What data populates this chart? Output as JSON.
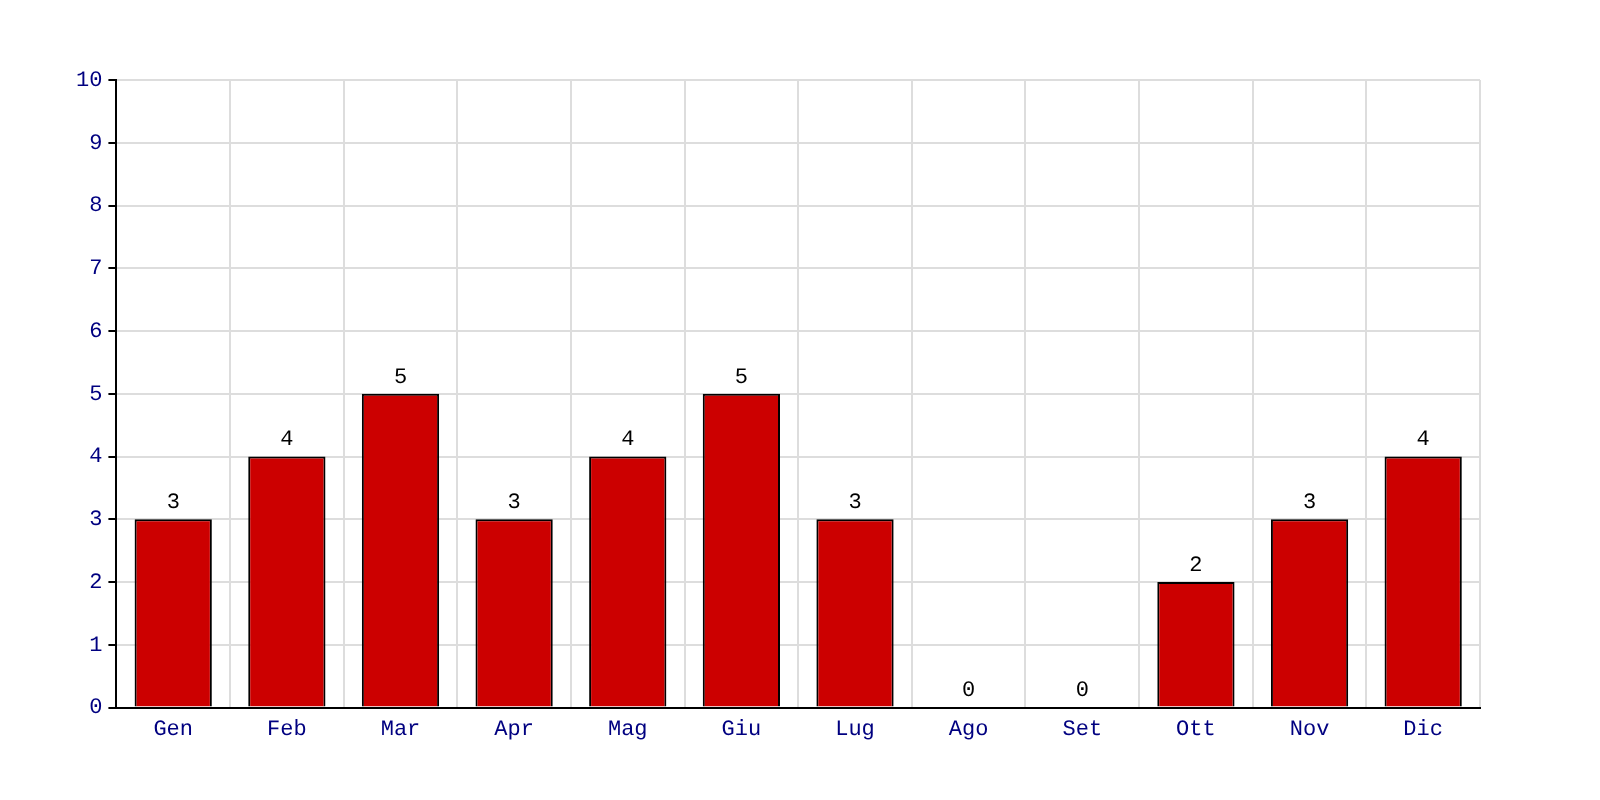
{
  "chart_data": {
    "type": "bar",
    "categories": [
      "Gen",
      "Feb",
      "Mar",
      "Apr",
      "Mag",
      "Giu",
      "Lug",
      "Ago",
      "Set",
      "Ott",
      "Nov",
      "Dic"
    ],
    "values": [
      3,
      4,
      5,
      3,
      4,
      5,
      3,
      0,
      0,
      2,
      3,
      4
    ],
    "color": "#cc0000",
    "ylim": [
      0,
      10
    ],
    "yticks": [
      0,
      1,
      2,
      3,
      4,
      5,
      6,
      7,
      8,
      9,
      10
    ],
    "grid": true,
    "data_labels": true
  }
}
